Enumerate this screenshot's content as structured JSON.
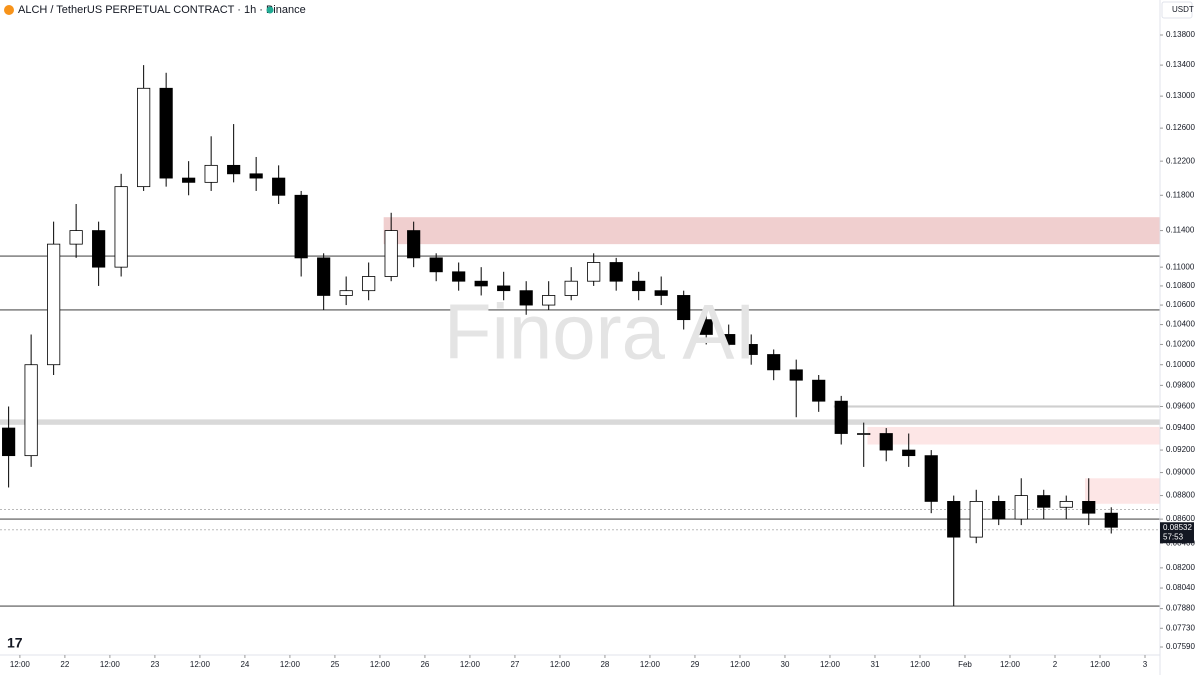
{
  "chart_data": {
    "type": "candlestick",
    "title": "ALCH / TetherUS PERPETUAL CONTRACT · 1h · Binance",
    "currency": "USDT",
    "watermark": "Finora AI",
    "countdown": "57:53",
    "log_scale": true,
    "up_color": "#ffffff",
    "down_color": "#000000",
    "x": [
      9,
      15,
      21,
      27,
      33,
      39,
      45,
      51,
      57,
      63,
      69,
      75,
      81,
      87,
      93,
      99,
      105,
      111,
      117,
      123,
      129,
      135,
      141,
      147,
      153,
      159,
      165,
      171,
      177,
      183,
      189,
      195,
      201,
      207,
      213,
      219,
      225,
      231,
      237,
      243,
      249,
      255,
      261,
      267,
      273,
      279,
      285,
      291,
      297,
      303
    ],
    "open": [
      0.094,
      0.0915,
      0.1,
      0.1125,
      0.114,
      0.11,
      0.119,
      0.131,
      0.12,
      0.1195,
      0.1215,
      0.1205,
      0.12,
      0.118,
      0.111,
      0.107,
      0.1075,
      0.109,
      0.114,
      0.111,
      0.1095,
      0.1085,
      0.108,
      0.1075,
      0.106,
      0.107,
      0.1085,
      0.1105,
      0.1085,
      0.1075,
      0.107,
      0.1045,
      0.103,
      0.102,
      0.101,
      0.0995,
      0.0985,
      0.0965,
      0.0935,
      0.0935,
      0.092,
      0.0915,
      0.0875,
      0.0845,
      0.0875,
      0.086,
      0.088,
      0.087,
      0.0875,
      0.0865
    ],
    "high": [
      0.096,
      0.103,
      0.115,
      0.117,
      0.115,
      0.1205,
      0.134,
      0.133,
      0.122,
      0.125,
      0.1265,
      0.1225,
      0.1215,
      0.1185,
      0.1115,
      0.109,
      0.1105,
      0.116,
      0.115,
      0.1115,
      0.1105,
      0.11,
      0.1095,
      0.1085,
      0.1085,
      0.11,
      0.1115,
      0.111,
      0.1095,
      0.109,
      0.1075,
      0.1055,
      0.104,
      0.103,
      0.1015,
      0.1005,
      0.099,
      0.097,
      0.0945,
      0.094,
      0.0935,
      0.092,
      0.088,
      0.0885,
      0.088,
      0.0895,
      0.0885,
      0.088,
      0.0895,
      0.087
    ],
    "low": [
      0.0887,
      0.0905,
      0.099,
      0.111,
      0.108,
      0.109,
      0.1185,
      0.119,
      0.118,
      0.1185,
      0.1195,
      0.1185,
      0.117,
      0.109,
      0.1055,
      0.106,
      0.1065,
      0.1085,
      0.11,
      0.1085,
      0.1075,
      0.107,
      0.1065,
      0.105,
      0.1055,
      0.1065,
      0.108,
      0.1075,
      0.1065,
      0.106,
      0.1035,
      0.102,
      0.101,
      0.1,
      0.0985,
      0.095,
      0.0955,
      0.0925,
      0.0905,
      0.091,
      0.0905,
      0.0865,
      0.079,
      0.084,
      0.0855,
      0.0855,
      0.086,
      0.086,
      0.0855,
      0.0848
    ],
    "close": [
      0.0915,
      0.1,
      0.1125,
      0.114,
      0.11,
      0.119,
      0.131,
      0.12,
      0.1195,
      0.1215,
      0.1205,
      0.12,
      0.118,
      0.111,
      0.107,
      0.1075,
      0.109,
      0.114,
      0.111,
      0.1095,
      0.1085,
      0.108,
      0.1075,
      0.106,
      0.107,
      0.1085,
      0.1105,
      0.1085,
      0.1075,
      0.107,
      0.1045,
      0.103,
      0.102,
      0.101,
      0.0995,
      0.0985,
      0.0965,
      0.0935,
      0.0935,
      0.092,
      0.0915,
      0.0875,
      0.0845,
      0.0875,
      0.086,
      0.088,
      0.087,
      0.0875,
      0.0865,
      0.08532
    ],
    "xlim": [
      6.7,
      316
    ],
    "xticks": [
      {
        "value": 12,
        "label": "12:00"
      },
      {
        "value": 24,
        "label": "22"
      },
      {
        "value": 36,
        "label": "12:00"
      },
      {
        "value": 48,
        "label": "23"
      },
      {
        "value": 60,
        "label": "12:00"
      },
      {
        "value": 72,
        "label": "24"
      },
      {
        "value": 84,
        "label": "12:00"
      },
      {
        "value": 96,
        "label": "25"
      },
      {
        "value": 108,
        "label": "12:00"
      },
      {
        "value": 120,
        "label": "26"
      },
      {
        "value": 132,
        "label": "12:00"
      },
      {
        "value": 144,
        "label": "27"
      },
      {
        "value": 156,
        "label": "12:00"
      },
      {
        "value": 168,
        "label": "28"
      },
      {
        "value": 180,
        "label": "12:00"
      },
      {
        "value": 192,
        "label": "29"
      },
      {
        "value": 204,
        "label": "12:00"
      },
      {
        "value": 216,
        "label": "30"
      },
      {
        "value": 228,
        "label": "12:00"
      },
      {
        "value": 240,
        "label": "31"
      },
      {
        "value": 252,
        "label": "12:00"
      },
      {
        "value": 264,
        "label": "Feb"
      },
      {
        "value": 276,
        "label": "12:00"
      },
      {
        "value": 288,
        "label": "2"
      },
      {
        "value": 300,
        "label": "12:00"
      },
      {
        "value": 312,
        "label": "3"
      }
    ],
    "ylim": [
      0.0759,
      0.138
    ],
    "yticks": [
      {
        "value": 0.138,
        "label": "0.13800"
      },
      {
        "value": 0.134,
        "label": "0.13400"
      },
      {
        "value": 0.13,
        "label": "0.13000"
      },
      {
        "value": 0.126,
        "label": "0.12600"
      },
      {
        "value": 0.122,
        "label": "0.12200"
      },
      {
        "value": 0.118,
        "label": "0.11800"
      },
      {
        "value": 0.114,
        "label": "0.11400"
      },
      {
        "value": 0.11,
        "label": "0.11000"
      },
      {
        "value": 0.108,
        "label": "0.10800"
      },
      {
        "value": 0.106,
        "label": "0.10600"
      },
      {
        "value": 0.104,
        "label": "0.10400"
      },
      {
        "value": 0.102,
        "label": "0.10200"
      },
      {
        "value": 0.1,
        "label": "0.10000"
      },
      {
        "value": 0.098,
        "label": "0.09800"
      },
      {
        "value": 0.096,
        "label": "0.09600"
      },
      {
        "value": 0.094,
        "label": "0.09400"
      },
      {
        "value": 0.092,
        "label": "0.09200"
      },
      {
        "value": 0.09,
        "label": "0.09000"
      },
      {
        "value": 0.088,
        "label": "0.08800"
      },
      {
        "value": 0.086,
        "label": "0.08600"
      },
      {
        "value": 0.084,
        "label": "0.08400"
      },
      {
        "value": 0.082,
        "label": "0.08200"
      },
      {
        "value": 0.0804,
        "label": "0.08040"
      },
      {
        "value": 0.0788,
        "label": "0.07880"
      },
      {
        "value": 0.0773,
        "label": "0.07730"
      },
      {
        "value": 0.0759,
        "label": "0.07590"
      }
    ],
    "zones": [
      {
        "from": 109,
        "low": 0.1125,
        "high": 0.1155,
        "color": "#f0cfcf"
      },
      {
        "from": 238,
        "low": 0.0925,
        "high": 0.0941,
        "color": "#fde6e6"
      },
      {
        "from": 296,
        "low": 0.0873,
        "high": 0.0895,
        "color": "#fde6e6"
      },
      {
        "from": 6.7,
        "low": 0.0943,
        "high": 0.0948,
        "color": "#d9d9d9"
      },
      {
        "from": 229,
        "low": 0.0959,
        "high": 0.0961,
        "color": "#cfcfcf"
      }
    ],
    "hlines": [
      {
        "price": 0.1112,
        "style": "solid"
      },
      {
        "price": 0.1055,
        "style": "solid"
      },
      {
        "price": 0.086,
        "style": "solid"
      },
      {
        "price": 0.079,
        "style": "solid"
      },
      {
        "price": 0.0868,
        "style": "dotted"
      },
      {
        "price": 0.0851,
        "style": "dotted"
      }
    ]
  }
}
